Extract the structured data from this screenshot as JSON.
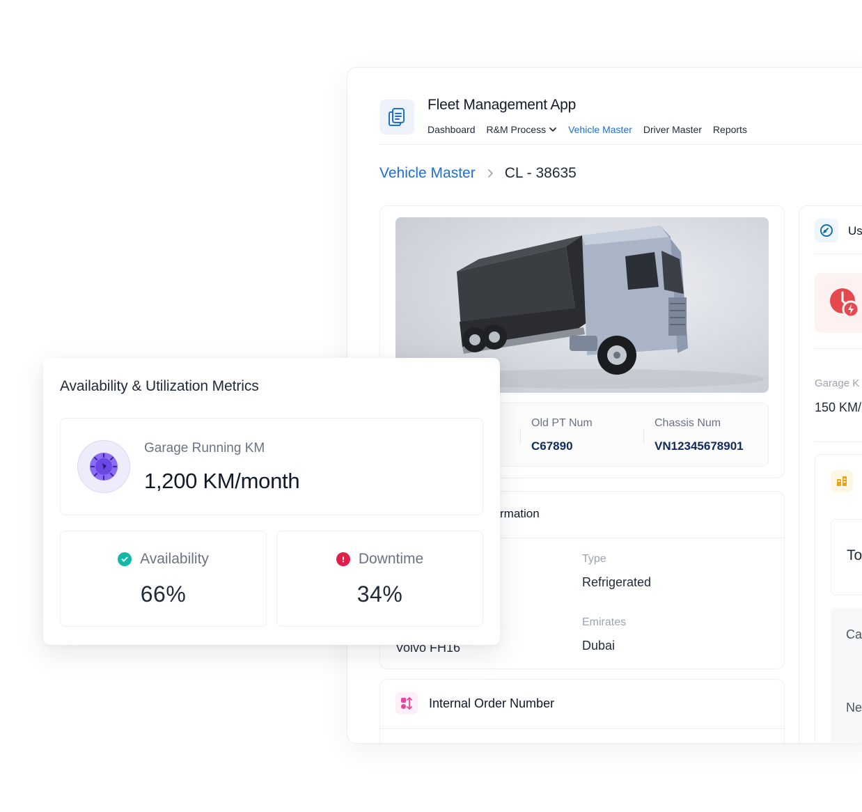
{
  "app": {
    "title": "Fleet Management App",
    "nav": [
      {
        "label": "Dashboard"
      },
      {
        "label": "R&M Process"
      },
      {
        "label": "Vehicle Master"
      },
      {
        "label": "Driver Master"
      },
      {
        "label": "Reports"
      }
    ],
    "active_nav": "Vehicle Master",
    "logo_icon": "document-copy-icon"
  },
  "breadcrumb": {
    "parent": "Vehicle Master",
    "current": "CL - 38635"
  },
  "vehicle": {
    "image_alt": "truck-image",
    "old_pt_num_label": "Old PT Num",
    "old_pt_num": "C67890",
    "chassis_num_label": "Chassis Num",
    "chassis_num": "VN12345678901"
  },
  "info": {
    "title_partial": "rmation",
    "type_label": "Type",
    "type_value": "Refrigerated",
    "model_value": "Volvo FH16",
    "emirates_label": "Emirates",
    "emirates_value": "Dubai"
  },
  "order": {
    "title": "Internal Order Number"
  },
  "right_panel": {
    "title": "Us",
    "garage_label": "Garage K",
    "garage_value": "150 KM/",
    "inner_text": "To",
    "row1": "Ca",
    "row2": "Ne"
  },
  "metrics": {
    "title": "Availability & Utilization Metrics",
    "garage_label": "Garage Running KM",
    "garage_value": "1,200 KM/month",
    "availability_label": "Availability",
    "availability_value": "66%",
    "downtime_label": "Downtime",
    "downtime_value": "34%"
  },
  "colors": {
    "accent": "#1d6fd1",
    "id_text": "#0e2a5c",
    "success": "#14b8a6",
    "danger": "#e11d48",
    "purple": "#7c5cf0"
  }
}
